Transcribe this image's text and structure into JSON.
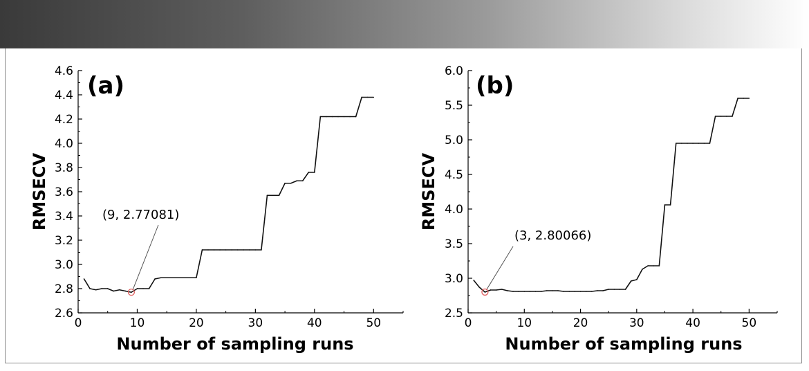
{
  "chart_data": [
    {
      "type": "line",
      "panel_label": "(a)",
      "xlabel": "Number of sampling runs",
      "ylabel": "RMSECV",
      "xlim": [
        0,
        55
      ],
      "ylim": [
        2.6,
        4.6
      ],
      "xticks": [
        0,
        10,
        20,
        30,
        40,
        50
      ],
      "yticks": [
        2.6,
        2.8,
        3.0,
        3.2,
        3.4,
        3.6,
        3.8,
        4.0,
        4.2,
        4.4,
        4.6
      ],
      "ytick_labels": [
        "2.6",
        "2.8",
        "3.0",
        "3.2",
        "3.4",
        "3.6",
        "3.8",
        "4.0",
        "4.2",
        "4.4",
        "4.6"
      ],
      "series": [
        {
          "name": "RMSECV",
          "x": [
            1,
            2,
            3,
            4,
            5,
            6,
            7,
            8,
            9,
            10,
            11,
            12,
            13,
            14,
            15,
            16,
            17,
            18,
            19,
            20,
            21,
            22,
            23,
            24,
            25,
            26,
            27,
            28,
            29,
            30,
            31,
            32,
            33,
            34,
            35,
            36,
            37,
            38,
            39,
            40,
            41,
            42,
            43,
            44,
            45,
            46,
            47,
            48,
            49,
            50
          ],
          "values": [
            2.88,
            2.8,
            2.79,
            2.8,
            2.8,
            2.78,
            2.79,
            2.78,
            2.77,
            2.8,
            2.8,
            2.8,
            2.88,
            2.89,
            2.89,
            2.89,
            2.89,
            2.89,
            2.89,
            2.89,
            3.12,
            3.12,
            3.12,
            3.12,
            3.12,
            3.12,
            3.12,
            3.12,
            3.12,
            3.12,
            3.12,
            3.57,
            3.57,
            3.57,
            3.67,
            3.67,
            3.69,
            3.69,
            3.76,
            3.76,
            4.22,
            4.22,
            4.22,
            4.22,
            4.22,
            4.22,
            4.22,
            4.38,
            4.38,
            4.38
          ]
        }
      ],
      "annotation": {
        "text": "(9, 2.77081)",
        "x": 9,
        "y": 2.77081
      }
    },
    {
      "type": "line",
      "panel_label": "(b)",
      "xlabel": "Number of sampling runs",
      "ylabel": "RMSECV",
      "xlim": [
        0,
        55
      ],
      "ylim": [
        2.5,
        6.0
      ],
      "xticks": [
        0,
        10,
        20,
        30,
        40,
        50
      ],
      "yticks": [
        2.5,
        3.0,
        3.5,
        4.0,
        4.5,
        5.0,
        5.5,
        6.0
      ],
      "ytick_labels": [
        "2.5",
        "3.0",
        "3.5",
        "4.0",
        "4.5",
        "5.0",
        "5.5",
        "6.0"
      ],
      "series": [
        {
          "name": "RMSECV",
          "x": [
            1,
            2,
            3,
            4,
            5,
            6,
            7,
            8,
            9,
            10,
            11,
            12,
            13,
            14,
            15,
            16,
            17,
            18,
            19,
            20,
            21,
            22,
            23,
            24,
            25,
            26,
            27,
            28,
            29,
            30,
            31,
            32,
            33,
            34,
            35,
            36,
            37,
            38,
            39,
            40,
            41,
            42,
            43,
            44,
            45,
            46,
            47,
            48,
            49,
            50
          ],
          "values": [
            2.97,
            2.87,
            2.8,
            2.83,
            2.83,
            2.84,
            2.82,
            2.81,
            2.81,
            2.81,
            2.81,
            2.81,
            2.81,
            2.82,
            2.82,
            2.82,
            2.81,
            2.81,
            2.81,
            2.81,
            2.81,
            2.81,
            2.82,
            2.82,
            2.84,
            2.84,
            2.84,
            2.84,
            2.96,
            2.98,
            3.13,
            3.18,
            3.18,
            3.18,
            4.06,
            4.06,
            4.95,
            4.95,
            4.95,
            4.95,
            4.95,
            4.95,
            4.95,
            5.34,
            5.34,
            5.34,
            5.34,
            5.6,
            5.6,
            5.6
          ]
        }
      ],
      "annotation": {
        "text": "(3, 2.80066)",
        "x": 3,
        "y": 2.80066
      }
    }
  ]
}
